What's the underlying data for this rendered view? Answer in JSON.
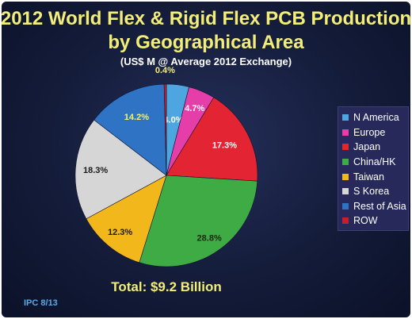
{
  "chart_data": {
    "type": "pie",
    "title": "2012 World Flex & Rigid Flex PCB Production",
    "title_line2": "by Geographical Area",
    "subtitle": "(US$ M @ Average 2012 Exchange)",
    "slices": [
      {
        "name": "N America",
        "value": 4.0,
        "label": "4.0%",
        "color": "#4da6e0",
        "label_color": "#ffffff"
      },
      {
        "name": "Europe",
        "value": 4.7,
        "label": "4.7%",
        "color": "#e53ea8",
        "label_color": "#ffffff"
      },
      {
        "name": "Japan",
        "value": 17.3,
        "label": "17.3%",
        "color": "#e32432",
        "label_color": "#ffffff"
      },
      {
        "name": "China/HK",
        "value": 28.8,
        "label": "28.8%",
        "color": "#3fab44",
        "label_color": "#1a2a10"
      },
      {
        "name": "Taiwan",
        "value": 12.3,
        "label": "12.3%",
        "color": "#f2b71b",
        "label_color": "#1a1a1a"
      },
      {
        "name": "S Korea",
        "value": 18.3,
        "label": "18.3%",
        "color": "#d6d6d6",
        "label_color": "#1a1a1a"
      },
      {
        "name": "Rest of Asia",
        "value": 14.2,
        "label": "14.2%",
        "color": "#2f74c4",
        "label_color": "#f2ee78"
      },
      {
        "name": "ROW",
        "value": 0.4,
        "label": "0.4%",
        "color": "#c4202a",
        "label_color": "#f2ee78"
      }
    ],
    "legend_position": "right"
  },
  "total_text": "Total: $9.2 Billion",
  "source_text": "IPC 8/13"
}
